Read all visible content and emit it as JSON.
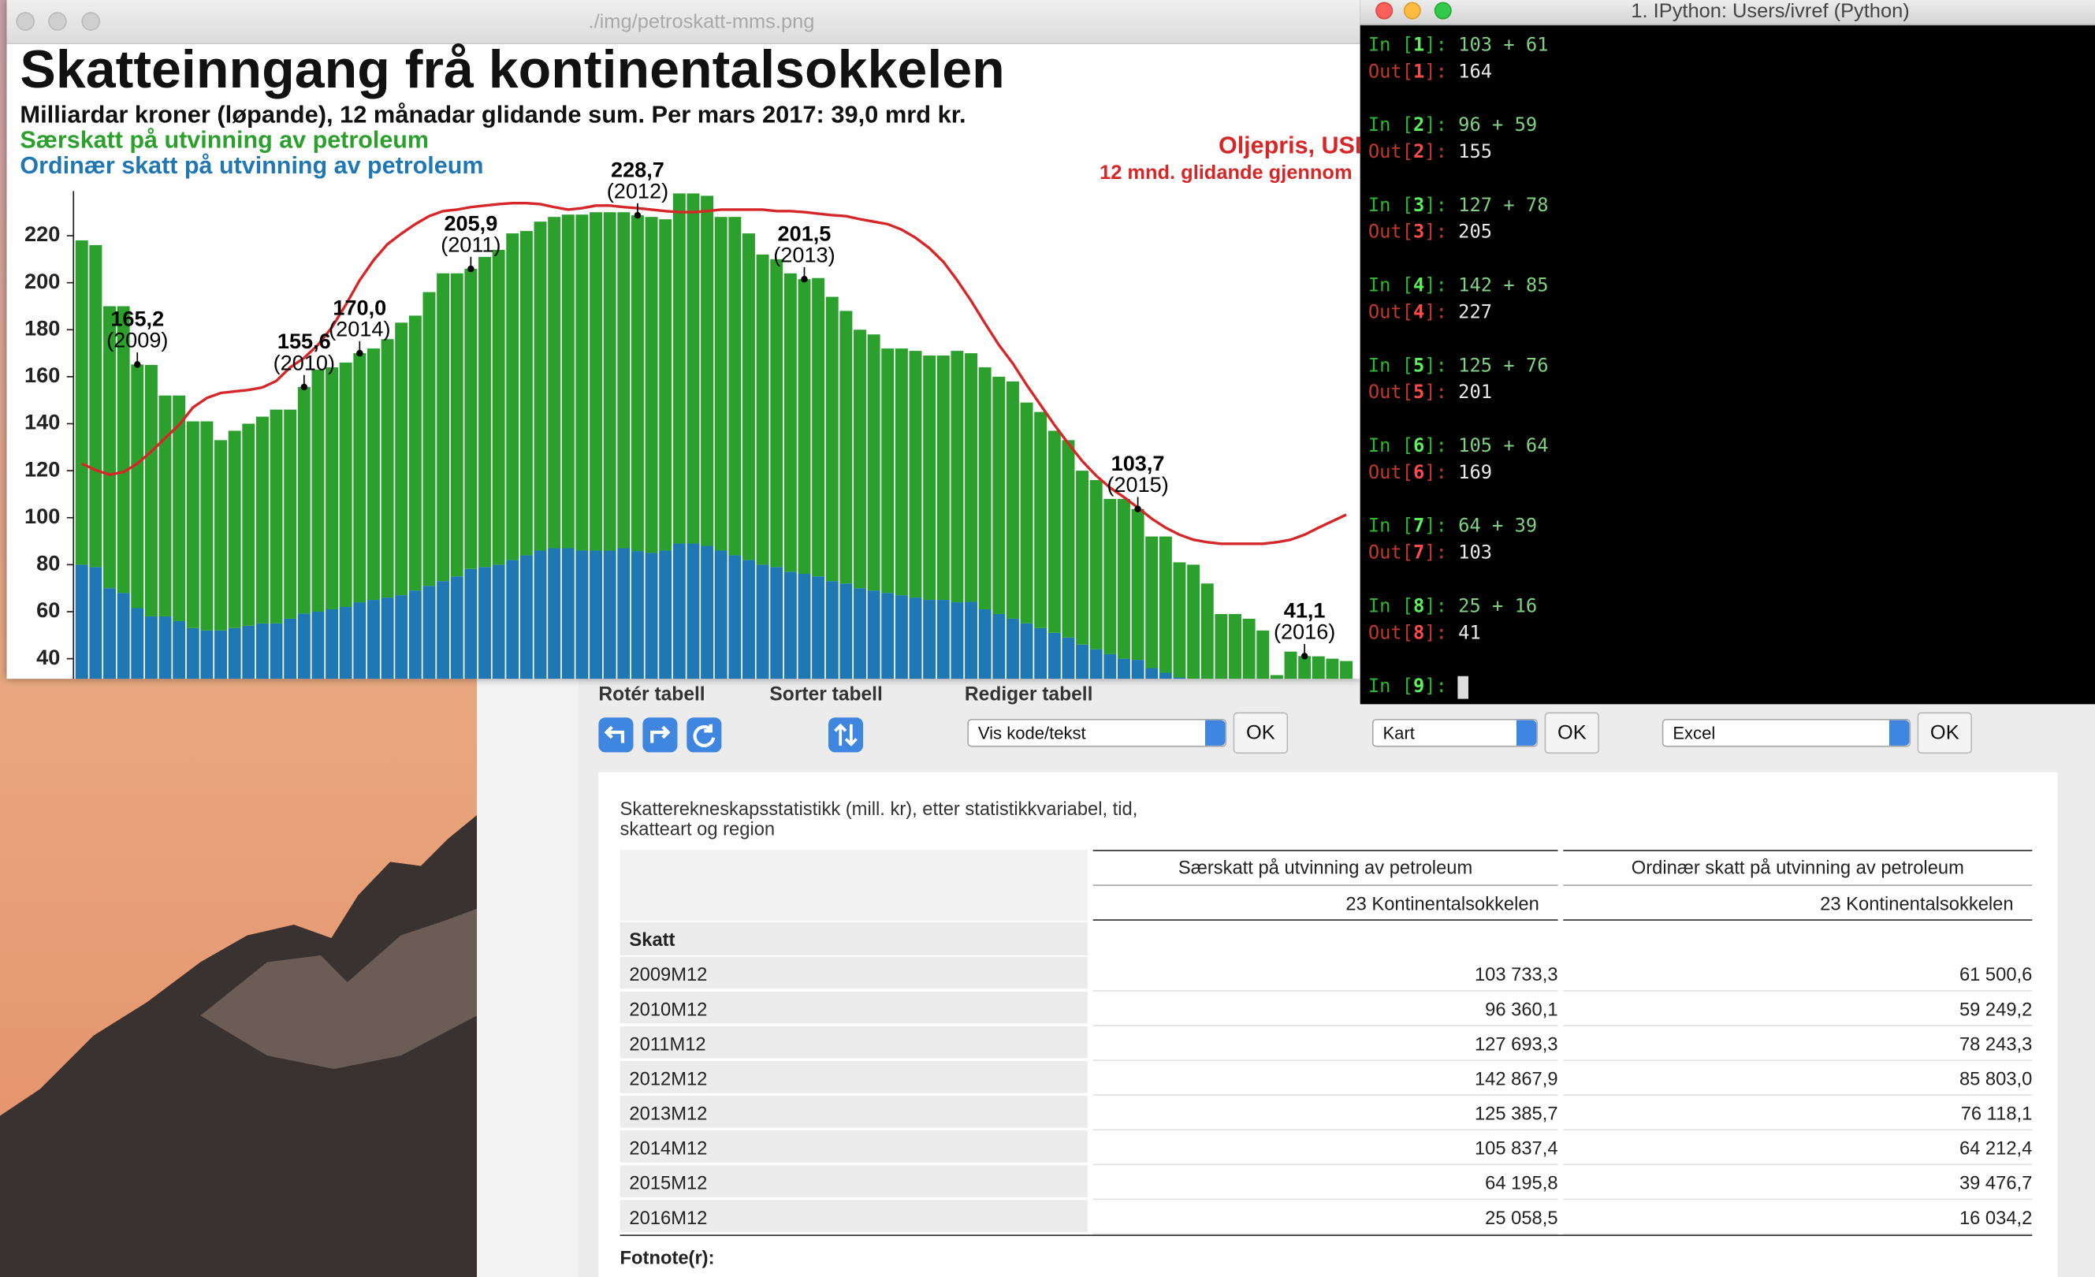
{
  "image_window": {
    "title": "./img/petroskatt-mms.png"
  },
  "chart_data": {
    "type": "bar",
    "stacked": true,
    "title": "Skatteinngang frå kontinentalsokkelen",
    "subtitle": "Milliardar kroner (løpande), 12 månadar glidande sum. Per mars 2017: 39,0 mrd kr.",
    "categories": [
      null,
      null,
      null,
      null,
      null,
      null,
      null,
      null,
      null,
      null,
      null,
      null,
      null,
      null,
      null,
      null,
      null,
      null,
      null,
      null,
      null,
      null,
      null,
      null,
      null,
      null,
      null,
      null,
      null,
      null,
      null,
      null,
      null,
      null,
      null,
      null,
      null,
      null,
      null,
      null,
      null,
      null,
      null,
      null,
      null,
      null,
      null,
      null,
      null,
      null,
      null,
      null,
      null,
      null,
      null,
      null,
      null,
      null,
      null,
      null,
      null,
      null,
      null,
      null,
      null,
      null,
      null,
      null,
      null,
      null,
      null,
      null,
      null,
      null,
      null,
      null,
      null,
      null,
      null,
      null,
      null,
      null,
      null,
      null,
      null,
      null,
      null,
      null,
      null,
      null,
      null,
      null
    ],
    "series": [
      {
        "name": "Særskatt på utvinning av petroleum",
        "color": "#2ca02c",
        "values": [
          138,
          137,
          120,
          122,
          103.7,
          107,
          94,
          96,
          88,
          89,
          81,
          84,
          86,
          88,
          91,
          89,
          96.4,
          103,
          103,
          104,
          106,
          107,
          110,
          116,
          117,
          125,
          131,
          129,
          127.7,
          132,
          134,
          139,
          138,
          140,
          141,
          142,
          143,
          144,
          144,
          143,
          142.9,
          143,
          141,
          149,
          149,
          149,
          142,
          144,
          139,
          132,
          131,
          127,
          125.4,
          127,
          121,
          116,
          110,
          109,
          104,
          105,
          105,
          104,
          104,
          107,
          105.8,
          103,
          101,
          101,
          94,
          92,
          86,
          84,
          74,
          72,
          66,
          68,
          64.2,
          56,
          58,
          49,
          50,
          44,
          33,
          35,
          35,
          32,
          15,
          26,
          25.1,
          26,
          25,
          24
        ]
      },
      {
        "name": "Ordinær skatt på utvinning av petroleum",
        "color": "#1f77b4",
        "values": [
          80,
          79,
          70,
          68,
          61.5,
          58,
          58,
          56,
          53,
          52,
          52,
          53,
          54,
          55,
          55,
          57,
          59.2,
          60,
          61,
          62,
          64,
          65,
          66,
          67,
          69,
          71,
          73,
          75,
          78.2,
          79,
          80,
          82,
          84,
          86,
          87,
          87,
          86,
          86,
          86,
          87,
          85.8,
          85,
          86,
          89,
          89,
          88,
          86,
          84,
          82,
          80,
          79,
          77,
          76.1,
          75,
          73,
          72,
          70,
          69,
          68,
          67,
          66,
          65,
          65,
          64,
          64.2,
          61,
          59,
          57,
          55,
          53,
          51,
          49,
          46,
          44,
          42,
          40,
          39.5,
          36,
          34,
          32,
          30,
          28,
          26,
          24,
          22,
          20,
          18,
          17,
          16.0,
          15,
          15,
          15
        ]
      },
      {
        "name": "Oljepris, USD",
        "note": "12 mnd. glidande gjennom",
        "type": "line",
        "axis": "y2",
        "color": "#d62728",
        "values": [
          60.3,
          59.0,
          58.1,
          58.6,
          60.3,
          62.7,
          65.4,
          68.0,
          71.5,
          73.4,
          74.4,
          74.7,
          75.0,
          75.5,
          76.8,
          79.5,
          81.4,
          84.0,
          87.5,
          92.0,
          96.9,
          100.9,
          104.1,
          106.2,
          108.1,
          109.7,
          110.7,
          111.0,
          111.5,
          111.8,
          112.1,
          112.3,
          112.3,
          112.1,
          111.5,
          111.0,
          111.3,
          111.8,
          111.8,
          111.5,
          111.3,
          111.0,
          110.7,
          110.5,
          110.5,
          110.7,
          111.0,
          111.0,
          111.0,
          111.0,
          110.7,
          110.7,
          110.5,
          110.2,
          109.9,
          109.7,
          109.1,
          108.6,
          108.1,
          107.0,
          105.4,
          103.3,
          100.6,
          96.9,
          92.8,
          88.3,
          84.0,
          80.3,
          76.0,
          72.0,
          68.0,
          64.3,
          60.8,
          57.9,
          55.5,
          53.6,
          51.5,
          49.3,
          47.5,
          46.1,
          45.1,
          44.6,
          44.3,
          44.3,
          44.3,
          44.3,
          44.6,
          45.1,
          46.1,
          47.5,
          48.8,
          50.1
        ]
      }
    ],
    "ylim": [
      32,
      239
    ],
    "yticks": [
      40,
      60,
      80,
      100,
      120,
      140,
      160,
      180,
      200,
      220
    ],
    "y2lim": [
      17.6,
      114.7
    ],
    "grid": false,
    "annotations": [
      {
        "value": 165.2,
        "label": "165,2",
        "year": "(2009)"
      },
      {
        "value": 155.6,
        "label": "155,6",
        "year": "(2010)"
      },
      {
        "value": 205.9,
        "label": "205,9",
        "year": "(2011)"
      },
      {
        "value": 228.7,
        "label": "228,7",
        "year": "(2012)"
      },
      {
        "value": 201.5,
        "label": "201,5",
        "year": "(2013)"
      },
      {
        "value": 170.0,
        "label": "170,0",
        "year": "(2014)"
      },
      {
        "value": 103.7,
        "label": "103,7",
        "year": "(2015)"
      },
      {
        "value": 41.1,
        "label": "41,1",
        "year": "(2016)"
      }
    ]
  },
  "terminal": {
    "title": "1. IPython: Users/ivref (Python)",
    "in_prefix": "In [",
    "out_prefix": "Out[",
    "suffix": "]: ",
    "entries": [
      {
        "n": "1",
        "input": "103 + 61",
        "output": "164"
      },
      {
        "n": "2",
        "input": "96 + 59",
        "output": "155"
      },
      {
        "n": "3",
        "input": "127 + 78",
        "output": "205"
      },
      {
        "n": "4",
        "input": "142 + 85",
        "output": "227"
      },
      {
        "n": "5",
        "input": "125 + 76",
        "output": "201"
      },
      {
        "n": "6",
        "input": "105 + 64",
        "output": "169"
      },
      {
        "n": "7",
        "input": "64 + 39",
        "output": "103"
      },
      {
        "n": "8",
        "input": "25 + 16",
        "output": "41"
      }
    ],
    "prompt_n": "9"
  },
  "controls": {
    "labels": [
      "Rotér tabell",
      "Sorter tabell",
      "Rediger tabell"
    ],
    "selects": [
      {
        "value": "Vis kode/tekst",
        "button": "OK"
      },
      {
        "value": "Kart",
        "button": "OK"
      },
      {
        "value": "Excel",
        "button": "OK"
      }
    ]
  },
  "table": {
    "caption": [
      "Skatterekneskapsstatistikk (mill. kr), etter statistikkvariabel, tid,",
      "skatteart og region"
    ],
    "columns": [
      "Særskatt på utvinning av petroleum",
      "Ordinær skatt på utvinning av petroleum"
    ],
    "subcolumns": [
      "23 Kontinentalsokkelen",
      "23 Kontinentalsokkelen"
    ],
    "stub_header": "Skatt",
    "rows": [
      [
        "2009M12",
        "103 733,3",
        "61 500,6"
      ],
      [
        "2010M12",
        "96 360,1",
        "59 249,2"
      ],
      [
        "2011M12",
        "127 693,3",
        "78 243,3"
      ],
      [
        "2012M12",
        "142 867,9",
        "85 803,0"
      ],
      [
        "2013M12",
        "125 385,7",
        "76 118,1"
      ],
      [
        "2014M12",
        "105 837,4",
        "64 212,4"
      ],
      [
        "2015M12",
        "64 195,8",
        "39 476,7"
      ],
      [
        "2016M12",
        "25 058,5",
        "16 034,2"
      ]
    ],
    "footnote": "Fotnote(r):"
  }
}
